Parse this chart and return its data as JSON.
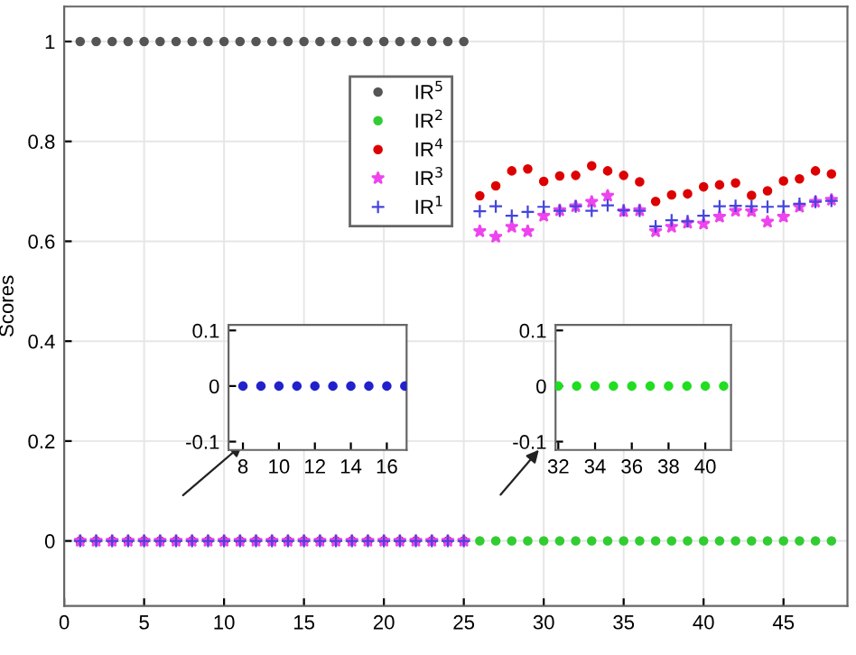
{
  "chart_data": [
    {
      "type": "scatter",
      "ylabel": "Scores",
      "xlim": [
        0,
        49
      ],
      "ylim": [
        -0.13,
        1.07
      ],
      "xticks": [
        0,
        5,
        10,
        15,
        20,
        25,
        30,
        35,
        40,
        45
      ],
      "yticks": [
        0,
        0.2,
        0.4,
        0.6,
        0.8,
        1
      ],
      "grid": true,
      "legend": "top",
      "series": [
        {
          "name": "IR$^{5}$",
          "color": "#555555",
          "marker": "circle",
          "x": [
            1,
            2,
            3,
            4,
            5,
            6,
            7,
            8,
            9,
            10,
            11,
            12,
            13,
            14,
            15,
            16,
            17,
            18,
            19,
            20,
            21,
            22,
            23,
            24,
            25
          ],
          "values": [
            1,
            1,
            1,
            1,
            1,
            1,
            1,
            1,
            1,
            1,
            1,
            1,
            1,
            1,
            1,
            1,
            1,
            1,
            1,
            1,
            1,
            1,
            1,
            1,
            1
          ]
        },
        {
          "name": "IR$^{2}$",
          "color": "#33cc33",
          "marker": "circle",
          "x": [
            26,
            27,
            28,
            29,
            30,
            31,
            32,
            33,
            34,
            35,
            36,
            37,
            38,
            39,
            40,
            41,
            42,
            43,
            44,
            45,
            46,
            47,
            48
          ],
          "values": [
            0,
            0,
            0,
            0,
            0,
            0,
            0,
            0,
            0,
            0,
            0,
            0,
            0,
            0,
            0,
            0,
            0,
            0,
            0,
            0,
            0,
            0,
            0
          ]
        },
        {
          "name": "IR$^{4}$",
          "color": "#dd0000",
          "marker": "circle",
          "x": [
            1,
            2,
            3,
            4,
            5,
            6,
            7,
            8,
            9,
            10,
            11,
            12,
            13,
            14,
            15,
            16,
            17,
            18,
            19,
            20,
            21,
            22,
            23,
            24,
            25,
            26,
            27,
            28,
            29,
            30,
            31,
            32,
            33,
            34,
            35,
            36,
            37,
            38,
            39,
            40,
            41,
            42,
            43,
            44,
            45,
            46,
            47,
            48
          ],
          "values": [
            0,
            0,
            0,
            0,
            0,
            0,
            0,
            0,
            0,
            0,
            0,
            0,
            0,
            0,
            0,
            0,
            0,
            0,
            0,
            0,
            0,
            0,
            0,
            0,
            0,
            0.691,
            0.711,
            0.741,
            0.745,
            0.72,
            0.731,
            0.732,
            0.751,
            0.741,
            0.732,
            0.719,
            0.68,
            0.693,
            0.695,
            0.709,
            0.713,
            0.717,
            0.692,
            0.701,
            0.721,
            0.725,
            0.741,
            0.735
          ]
        },
        {
          "name": "IR$^{3}$",
          "color": "#ee44ee",
          "marker": "star",
          "x": [
            1,
            2,
            3,
            4,
            5,
            6,
            7,
            8,
            9,
            10,
            11,
            12,
            13,
            14,
            15,
            16,
            17,
            18,
            19,
            20,
            21,
            22,
            23,
            24,
            25,
            26,
            27,
            28,
            29,
            30,
            31,
            32,
            33,
            34,
            35,
            36,
            37,
            38,
            39,
            40,
            41,
            42,
            43,
            44,
            45,
            46,
            47,
            48
          ],
          "values": [
            0,
            0,
            0,
            0,
            0,
            0,
            0,
            0,
            0,
            0,
            0,
            0,
            0,
            0,
            0,
            0,
            0,
            0,
            0,
            0,
            0,
            0,
            0,
            0,
            0,
            0.62,
            0.609,
            0.629,
            0.62,
            0.651,
            0.662,
            0.67,
            0.679,
            0.691,
            0.66,
            0.662,
            0.62,
            0.629,
            0.637,
            0.635,
            0.649,
            0.661,
            0.66,
            0.639,
            0.649,
            0.669,
            0.679,
            0.683
          ]
        },
        {
          "name": "IR$^{1}$",
          "color": "#4444dd",
          "marker": "cross",
          "x": [
            1,
            2,
            3,
            4,
            5,
            6,
            7,
            8,
            9,
            10,
            11,
            12,
            13,
            14,
            15,
            16,
            17,
            18,
            19,
            20,
            21,
            22,
            23,
            24,
            25,
            26,
            27,
            28,
            29,
            30,
            31,
            32,
            33,
            34,
            35,
            36,
            37,
            38,
            39,
            40,
            41,
            42,
            43,
            44,
            45,
            46,
            47,
            48
          ],
          "values": [
            0,
            0,
            0,
            0,
            0,
            0,
            0,
            0,
            0,
            0,
            0,
            0,
            0,
            0,
            0,
            0,
            0,
            0,
            0,
            0,
            0,
            0,
            0,
            0,
            0,
            0.66,
            0.67,
            0.651,
            0.659,
            0.669,
            0.661,
            0.67,
            0.661,
            0.672,
            0.662,
            0.661,
            0.63,
            0.642,
            0.64,
            0.651,
            0.67,
            0.671,
            0.67,
            0.669,
            0.67,
            0.675,
            0.679,
            0.681
          ]
        }
      ]
    },
    {
      "type": "scatter",
      "xlim": [
        7.2,
        17.1
      ],
      "ylim": [
        -0.115,
        0.11
      ],
      "xticks": [
        8,
        10,
        12,
        14,
        16
      ],
      "yticks": [
        -0.1,
        0,
        0.1
      ],
      "series": [
        {
          "color": "#2222cc",
          "marker": "circle",
          "x": [
            8,
            9,
            10,
            11,
            12,
            13,
            14,
            15,
            16,
            17
          ],
          "values": [
            0,
            0,
            0,
            0,
            0,
            0,
            0,
            0,
            0,
            0
          ]
        }
      ]
    },
    {
      "type": "scatter",
      "xlim": [
        31.85,
        41.4
      ],
      "ylim": [
        -0.115,
        0.11
      ],
      "xticks": [
        32,
        34,
        36,
        38,
        40
      ],
      "yticks": [
        -0.1,
        0,
        0.1
      ],
      "series": [
        {
          "color": "#22dd22",
          "marker": "circle",
          "x": [
            32,
            33,
            34,
            35,
            36,
            37,
            38,
            39,
            40,
            41
          ],
          "values": [
            0,
            0,
            0,
            0,
            0,
            0,
            0,
            0,
            0,
            0
          ]
        }
      ]
    }
  ]
}
